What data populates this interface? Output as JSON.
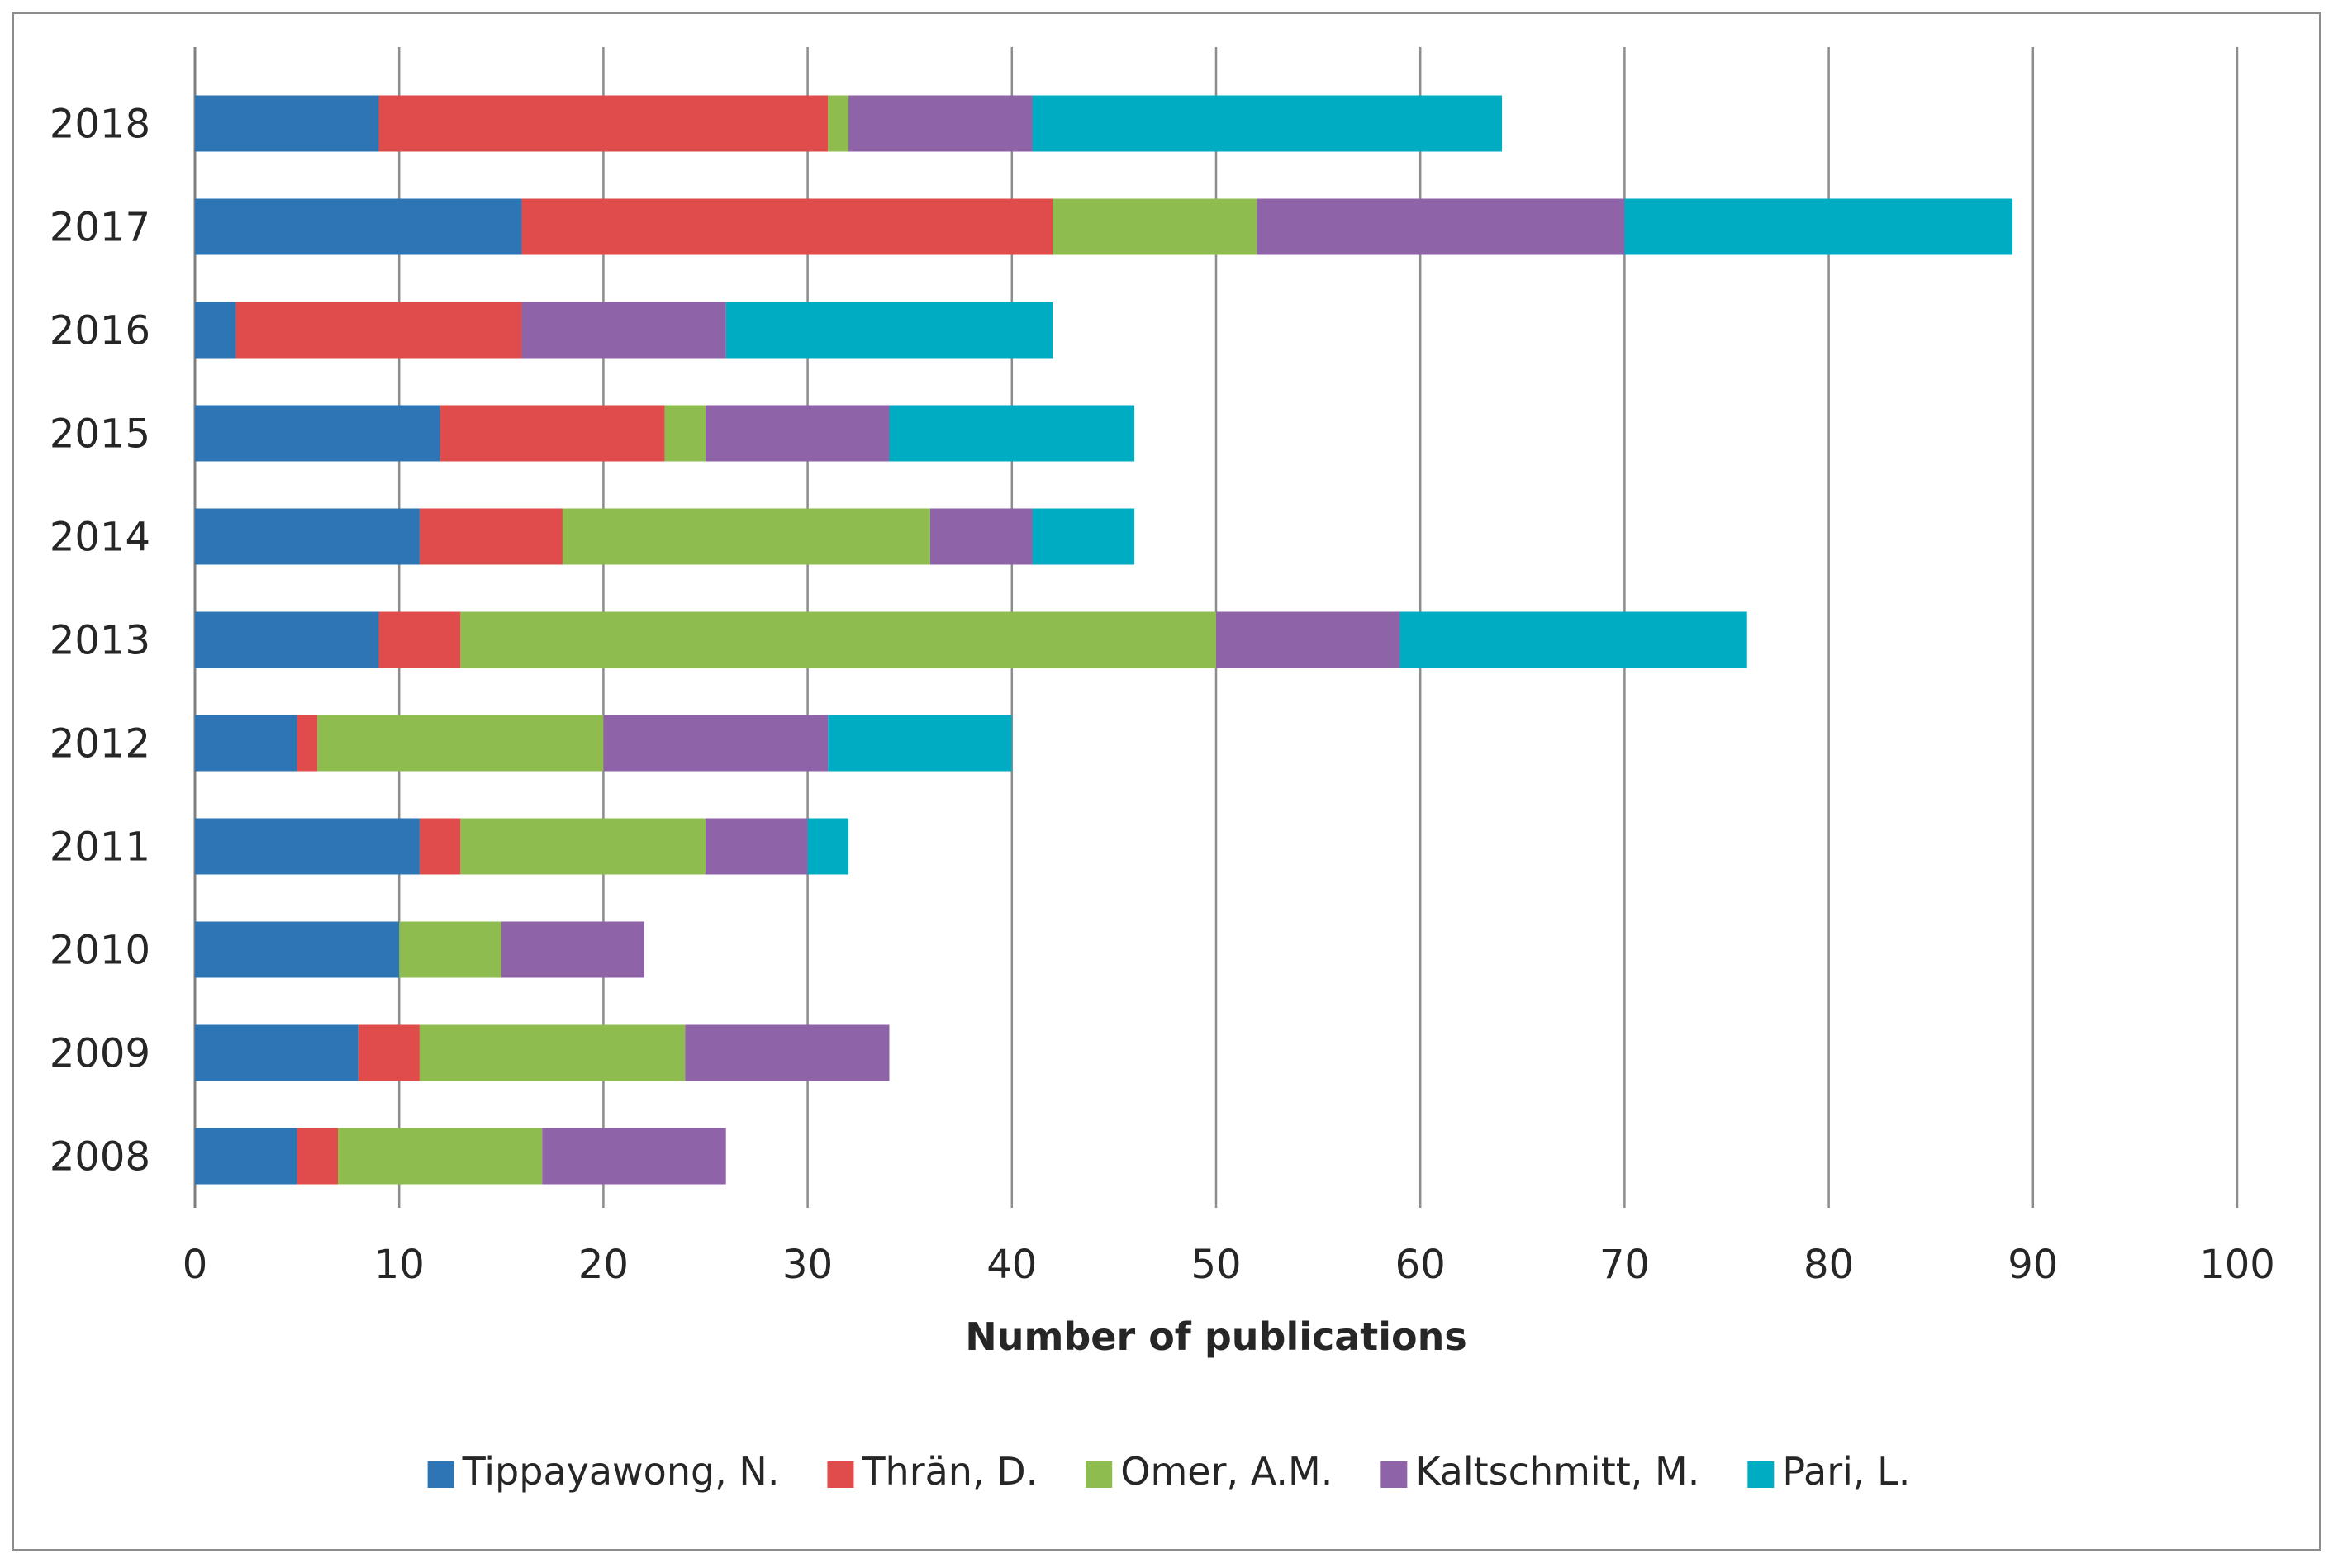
{
  "chart_data": {
    "type": "bar",
    "orientation": "horizontal",
    "stacked": true,
    "title": "",
    "xlabel": "Number of publications",
    "ylabel": "",
    "xlim": [
      0,
      100
    ],
    "x_ticks": [
      0,
      10,
      20,
      30,
      40,
      50,
      60,
      70,
      80,
      90,
      100
    ],
    "grid": "vertical",
    "legend_position": "bottom",
    "categories": [
      "2018",
      "2017",
      "2016",
      "2015",
      "2014",
      "2013",
      "2012",
      "2011",
      "2010",
      "2009",
      "2008"
    ],
    "series": [
      {
        "name": "Tippayawong, N.",
        "color": "#2e75b6",
        "values": [
          9,
          16,
          2,
          12,
          11,
          9,
          5,
          11,
          10,
          8,
          5
        ]
      },
      {
        "name": "Thrän, D.",
        "color": "#e04b4b",
        "values": [
          22,
          26,
          14,
          11,
          7,
          4,
          1,
          2,
          0,
          3,
          2
        ]
      },
      {
        "name": "Omer, A.M.",
        "color": "#8fbc4f",
        "values": [
          1,
          10,
          0,
          2,
          18,
          37,
          14,
          12,
          5,
          13,
          10
        ]
      },
      {
        "name": "Kaltschmitt, M.",
        "color": "#8e63a8",
        "values": [
          9,
          18,
          10,
          9,
          5,
          9,
          11,
          5,
          7,
          10,
          9
        ]
      },
      {
        "name": "Pari, L.",
        "color": "#00acc1",
        "values": [
          23,
          19,
          16,
          12,
          5,
          17,
          9,
          2,
          0,
          0,
          0
        ]
      }
    ]
  }
}
